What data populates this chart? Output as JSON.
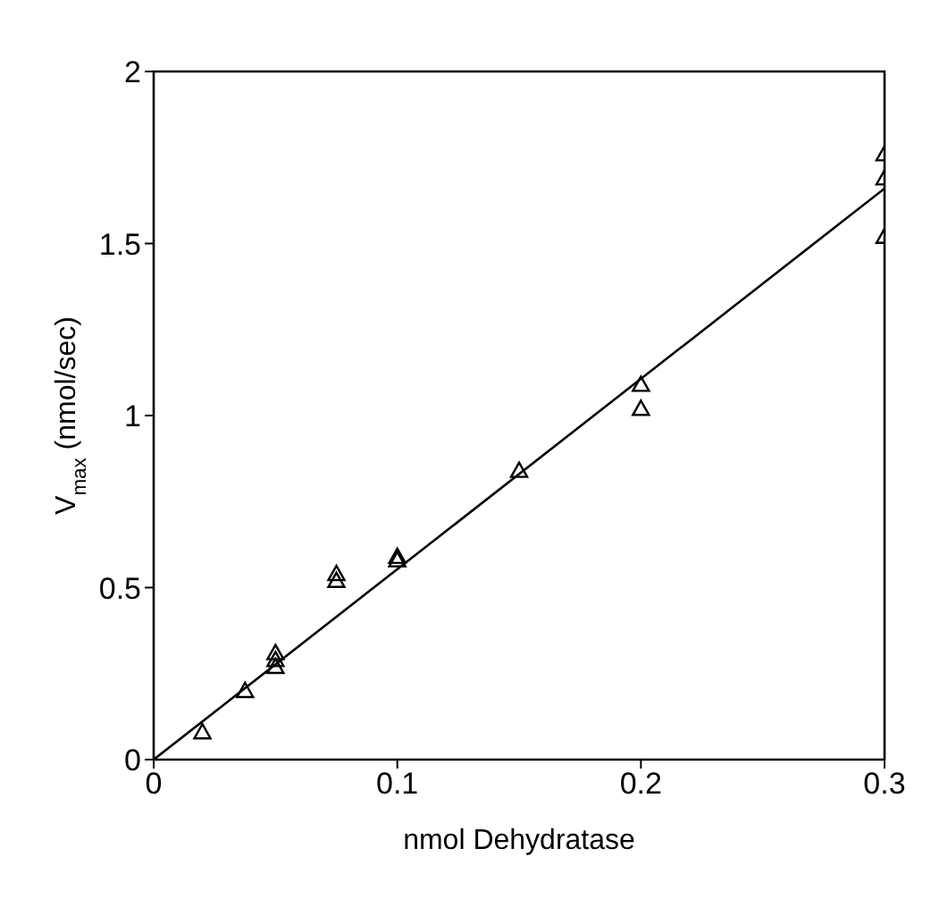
{
  "chart_data": {
    "type": "scatter",
    "xlabel": "nmol Dehydratase",
    "ylabel": "V$_{max}$ (nmol/sec)",
    "xlim": [
      0,
      0.3
    ],
    "xticks": [
      0,
      0.1,
      0.2,
      0.3
    ],
    "ylim": [
      0,
      2
    ],
    "yticks": [
      0,
      0.5,
      1,
      1.5,
      2
    ],
    "grid": false,
    "legend": false,
    "marker": "triangle",
    "series": [
      {
        "type": "scatter",
        "color": "#000000",
        "x": [
          0.02,
          0.0375,
          0.05,
          0.05,
          0.05,
          0.075,
          0.075,
          0.1,
          0.1,
          0.15,
          0.2,
          0.2,
          0.3,
          0.3,
          0.3
        ],
        "values": [
          0.08,
          0.2,
          0.27,
          0.29,
          0.31,
          0.52,
          0.54,
          0.58,
          0.59,
          0.84,
          1.02,
          1.09,
          1.52,
          1.69,
          1.76
        ]
      },
      {
        "type": "line",
        "color": "#000000",
        "x": [
          0,
          0.3
        ],
        "values": [
          0,
          1.66
        ],
        "marker": "none",
        "line_style": "solid"
      }
    ]
  }
}
